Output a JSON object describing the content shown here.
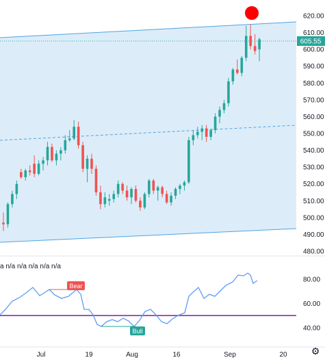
{
  "price_axis": {
    "ticks": [
      "620.00",
      "610.00",
      "600.00",
      "590.00",
      "580.00",
      "570.00",
      "560.00",
      "550.00",
      "540.00",
      "530.00",
      "520.00",
      "510.00",
      "500.00",
      "490.00",
      "480.00"
    ],
    "last_price_label": "605.55",
    "last_price_color": "#26a69a"
  },
  "indicator": {
    "header": "a n/a n/a n/a n/a n/a",
    "axis_ticks": [
      "80.00",
      "60.00",
      "40.00"
    ],
    "bear_label": "Bear",
    "bull_label": "Bull",
    "bear_color": "#ef5350",
    "bull_color": "#26a69a",
    "line_color": "#5b9cf6",
    "level_color": "#7b1fa2"
  },
  "time_axis": {
    "labels": [
      "Jul",
      "19",
      "Aug",
      "16",
      "Sep",
      "20"
    ]
  },
  "colors": {
    "up": "#26a69a",
    "down": "#ef5350",
    "channel_fill": "#d6eaf8",
    "channel_line": "#4fa3e0",
    "marker": "#ff0000"
  },
  "chart_data": {
    "type": "candlestick",
    "ylim": [
      475,
      625
    ],
    "candles": [
      [
        497,
        503,
        492,
        496
      ],
      [
        496,
        509,
        494,
        508
      ],
      [
        508,
        516,
        506,
        514
      ],
      [
        514,
        522,
        511,
        520
      ],
      [
        527,
        529,
        523,
        524
      ],
      [
        524,
        529,
        522,
        528
      ],
      [
        528,
        531,
        525,
        527
      ],
      [
        532,
        537,
        524,
        526
      ],
      [
        526,
        534,
        525,
        532
      ],
      [
        532,
        536,
        528,
        534
      ],
      [
        534,
        545,
        531,
        542
      ],
      [
        542,
        544,
        533,
        534
      ],
      [
        534,
        540,
        531,
        538
      ],
      [
        538,
        542,
        534,
        540
      ],
      [
        540,
        549,
        538,
        546
      ],
      [
        546,
        552,
        545,
        547
      ],
      [
        547,
        558,
        546,
        554
      ],
      [
        554,
        557,
        541,
        543
      ],
      [
        543,
        545,
        527,
        529
      ],
      [
        529,
        537,
        521,
        535
      ],
      [
        535,
        538,
        526,
        529
      ],
      [
        529,
        531,
        513,
        515
      ],
      [
        515,
        519,
        505,
        508
      ],
      [
        508,
        515,
        506,
        512
      ],
      [
        510,
        514,
        507,
        511
      ],
      [
        511,
        516,
        509,
        514
      ],
      [
        514,
        522,
        512,
        520
      ],
      [
        520,
        521,
        514,
        516
      ],
      [
        516,
        519,
        510,
        512
      ],
      [
        512,
        518,
        508,
        517
      ],
      [
        517,
        519,
        509,
        510
      ],
      [
        510,
        512,
        504,
        506
      ],
      [
        506,
        515,
        505,
        514
      ],
      [
        514,
        523,
        512,
        522
      ],
      [
        522,
        523,
        514,
        516
      ],
      [
        516,
        519,
        510,
        518
      ],
      [
        518,
        519,
        512,
        514
      ],
      [
        514,
        516,
        508,
        509
      ],
      [
        509,
        515,
        507,
        513
      ],
      [
        513,
        518,
        511,
        517
      ],
      [
        517,
        520,
        514,
        519
      ],
      [
        519,
        522,
        516,
        521
      ],
      [
        521,
        548,
        520,
        546
      ],
      [
        546,
        552,
        543,
        549
      ],
      [
        549,
        554,
        547,
        551
      ],
      [
        551,
        555,
        546,
        553
      ],
      [
        553,
        555,
        545,
        548
      ],
      [
        548,
        553,
        546,
        552
      ],
      [
        552,
        562,
        550,
        560
      ],
      [
        560,
        566,
        556,
        564
      ],
      [
        564,
        570,
        562,
        568
      ],
      [
        568,
        583,
        566,
        581
      ],
      [
        581,
        589,
        579,
        588
      ],
      [
        588,
        594,
        585,
        586
      ],
      [
        586,
        596,
        584,
        595
      ],
      [
        595,
        614,
        593,
        608
      ],
      [
        608,
        615,
        600,
        602
      ],
      [
        602,
        609,
        597,
        599
      ],
      [
        600,
        607,
        593,
        606
      ]
    ]
  }
}
